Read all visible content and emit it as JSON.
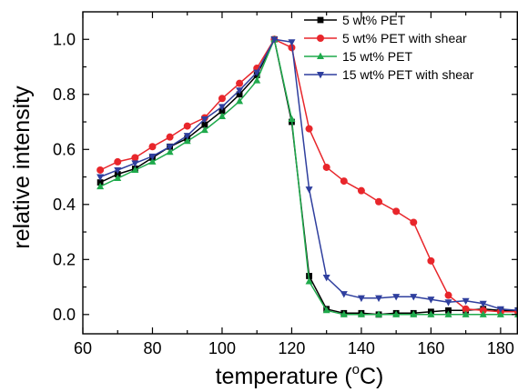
{
  "chart_data": {
    "type": "line",
    "title": "",
    "xlabel": "temperature (",
    "xlabel_unit_sup": "o",
    "xlabel_unit": "C)",
    "ylabel": "relative intensity",
    "xlim": [
      60,
      185
    ],
    "ylim": [
      -0.07,
      1.1
    ],
    "x_ticks": [
      60,
      80,
      100,
      120,
      140,
      160,
      180
    ],
    "x_tick_labels": [
      "60",
      "80",
      "100",
      "120",
      "140",
      "160",
      "180"
    ],
    "y_ticks": [
      0.0,
      0.2,
      0.4,
      0.6,
      0.8,
      1.0
    ],
    "y_tick_labels": [
      "0.0",
      "0.2",
      "0.4",
      "0.6",
      "0.8",
      "1.0"
    ],
    "grid": false,
    "legend_position": "top-right",
    "series": [
      {
        "name": "5 wt% PET",
        "color": "#000000",
        "marker": "square",
        "x": [
          65,
          70,
          75,
          80,
          85,
          90,
          95,
          100,
          105,
          110,
          115,
          120,
          125,
          130,
          135,
          140,
          145,
          150,
          155,
          160,
          165,
          170,
          175,
          180,
          185
        ],
        "y": [
          0.48,
          0.51,
          0.53,
          0.57,
          0.61,
          0.64,
          0.69,
          0.74,
          0.8,
          0.87,
          1.0,
          0.7,
          0.14,
          0.02,
          0.005,
          0.005,
          0.0,
          0.005,
          0.005,
          0.01,
          0.015,
          0.015,
          0.02,
          0.015,
          0.015
        ]
      },
      {
        "name": "5 wt% PET with  shear",
        "color": "#e8262b",
        "marker": "circle",
        "x": [
          65,
          70,
          75,
          80,
          85,
          90,
          95,
          100,
          105,
          110,
          115,
          120,
          125,
          130,
          135,
          140,
          145,
          150,
          155,
          160,
          165,
          170,
          175,
          180,
          185
        ],
        "y": [
          0.525,
          0.555,
          0.57,
          0.61,
          0.645,
          0.685,
          0.715,
          0.785,
          0.84,
          0.895,
          1.0,
          0.97,
          0.675,
          0.535,
          0.485,
          0.45,
          0.41,
          0.375,
          0.335,
          0.195,
          0.07,
          0.02,
          0.015,
          0.01,
          0.01
        ]
      },
      {
        "name": "15 wt% PET",
        "color": "#1faa4c",
        "marker": "triangle-up",
        "x": [
          65,
          70,
          75,
          80,
          85,
          90,
          95,
          100,
          105,
          110,
          115,
          120,
          125,
          130,
          135,
          140,
          145,
          150,
          155,
          160,
          165,
          170,
          175,
          180,
          185
        ],
        "y": [
          0.465,
          0.495,
          0.525,
          0.555,
          0.59,
          0.63,
          0.67,
          0.72,
          0.775,
          0.85,
          1.0,
          0.71,
          0.12,
          0.015,
          0.0,
          0.0,
          0.0,
          0.0,
          0.0,
          0.0,
          0.0,
          0.0,
          0.0,
          0.0,
          0.0
        ]
      },
      {
        "name": "15 wt% PET with shear",
        "color": "#2f3f9e",
        "marker": "triangle-down",
        "x": [
          65,
          70,
          75,
          80,
          85,
          90,
          95,
          100,
          105,
          110,
          115,
          120,
          125,
          130,
          135,
          140,
          145,
          150,
          155,
          160,
          165,
          170,
          175,
          180,
          185
        ],
        "y": [
          0.5,
          0.525,
          0.55,
          0.575,
          0.61,
          0.65,
          0.71,
          0.755,
          0.815,
          0.88,
          1.0,
          0.99,
          0.455,
          0.135,
          0.075,
          0.06,
          0.06,
          0.065,
          0.065,
          0.055,
          0.045,
          0.05,
          0.04,
          0.02,
          0.015
        ]
      }
    ]
  }
}
